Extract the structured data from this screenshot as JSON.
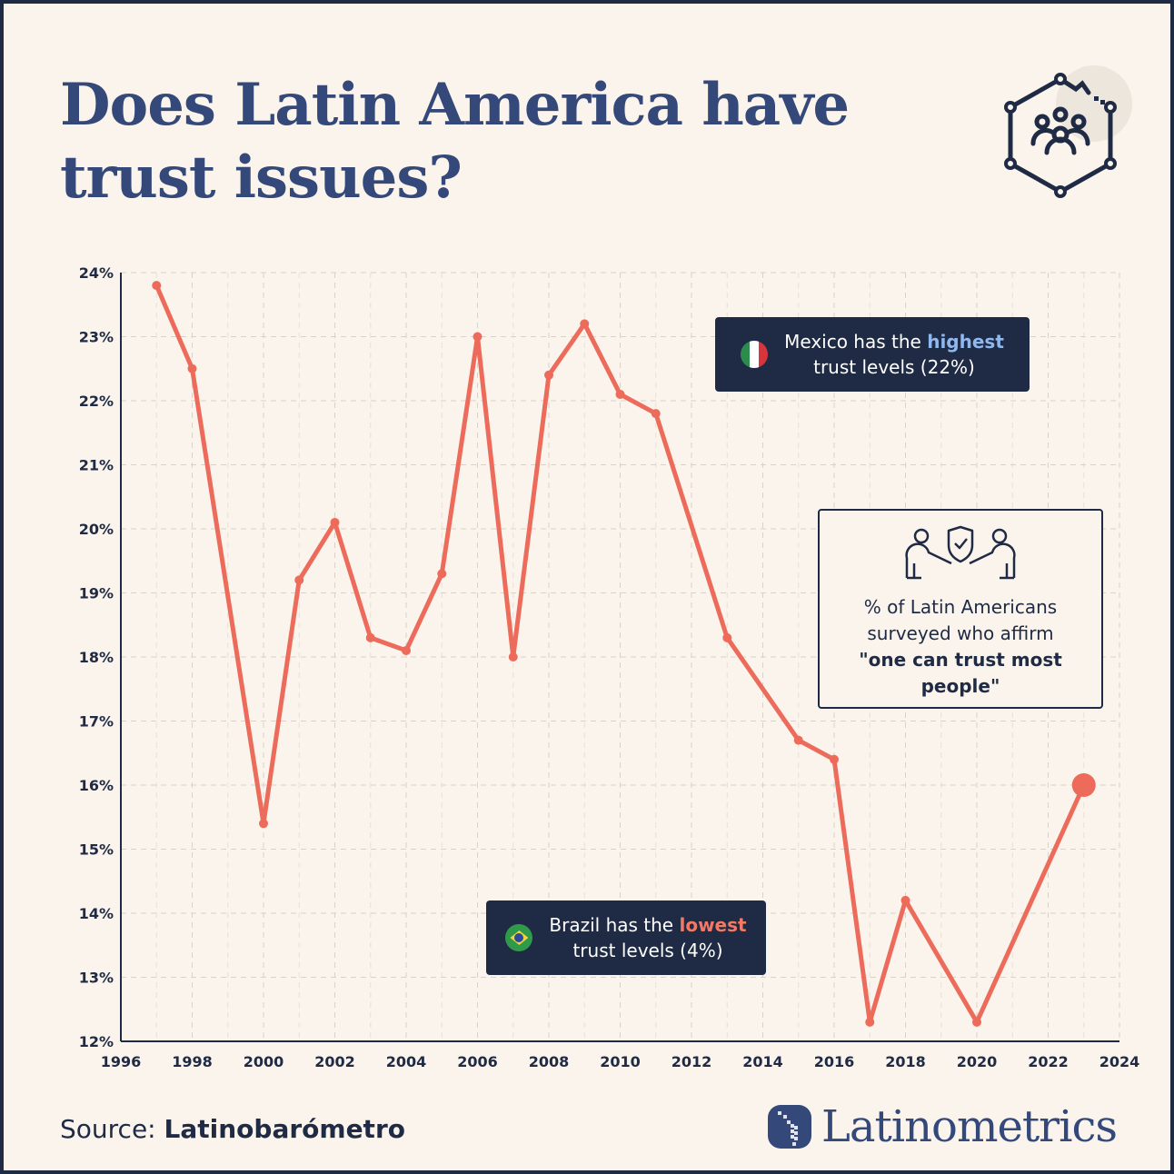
{
  "title": "Does Latin America have trust issues?",
  "header_icon": "network-people-hexagon-icon",
  "colors": {
    "line": "#ec6b5b",
    "title": "#34497a",
    "dark": "#1f2a44",
    "background": "#faf4ec",
    "highlight_blue": "#8fb8ee",
    "highlight_red": "#f07a66"
  },
  "annotations": {
    "mexico": {
      "pre": "Mexico has the ",
      "hl": "highest",
      "post": "trust levels (22%)",
      "flag": "mexico-flag-icon"
    },
    "brazil": {
      "pre": "Brazil has the ",
      "hl": "lowest",
      "post": "trust levels (4%)",
      "flag": "brazil-flag-icon"
    },
    "legend": {
      "icon": "handshake-trust-icon",
      "text": "% of Latin Americans surveyed who affirm",
      "bold": "\"one can trust most people\""
    }
  },
  "source": {
    "label": "Source: ",
    "value": "Latinobarómetro"
  },
  "brand": "Latinometrics",
  "chart_data": {
    "type": "line",
    "xlim": [
      1996,
      2024
    ],
    "ylim": [
      12,
      24
    ],
    "x_ticks": [
      1996,
      1998,
      2000,
      2002,
      2004,
      2006,
      2008,
      2010,
      2012,
      2014,
      2016,
      2018,
      2020,
      2022,
      2024
    ],
    "y_ticks": [
      "12%",
      "13%",
      "14%",
      "15%",
      "16%",
      "17%",
      "18%",
      "19%",
      "20%",
      "21%",
      "22%",
      "23%",
      "24%"
    ],
    "grid": true,
    "x": [
      1997,
      1998,
      2000,
      2001,
      2002,
      2003,
      2004,
      2005,
      2006,
      2007,
      2008,
      2009,
      2010,
      2011,
      2013,
      2015,
      2016,
      2017,
      2018,
      2020,
      2023
    ],
    "y": [
      23.8,
      22.5,
      15.4,
      19.2,
      20.1,
      18.3,
      18.1,
      19.3,
      23.0,
      18.0,
      22.4,
      23.2,
      22.1,
      21.8,
      18.3,
      16.7,
      16.4,
      12.3,
      14.2,
      12.3,
      16.0
    ]
  }
}
